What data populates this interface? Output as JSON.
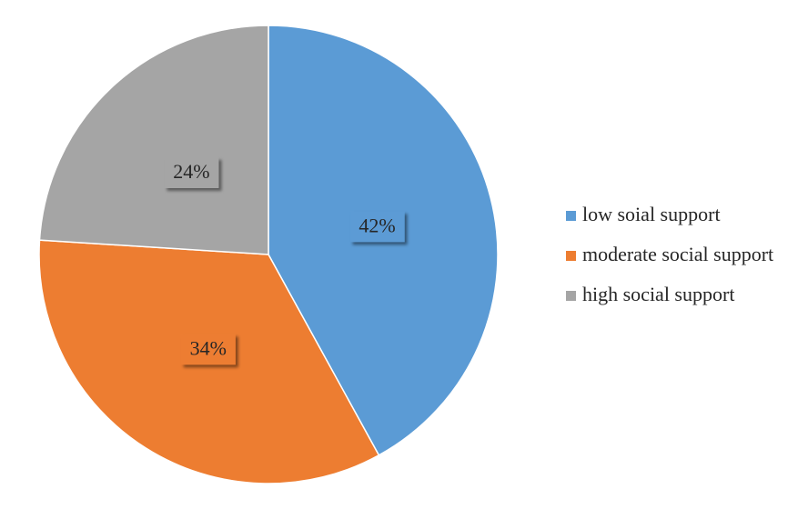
{
  "chart_data": {
    "type": "pie",
    "categories": [
      "low soial support",
      "moderate social support",
      "high social support"
    ],
    "values": [
      42,
      34,
      24
    ],
    "value_labels": [
      "42%",
      "34%",
      "24%"
    ],
    "colors": [
      "#5b9bd5",
      "#ed7d31",
      "#a5a5a5"
    ],
    "legend": "right"
  }
}
